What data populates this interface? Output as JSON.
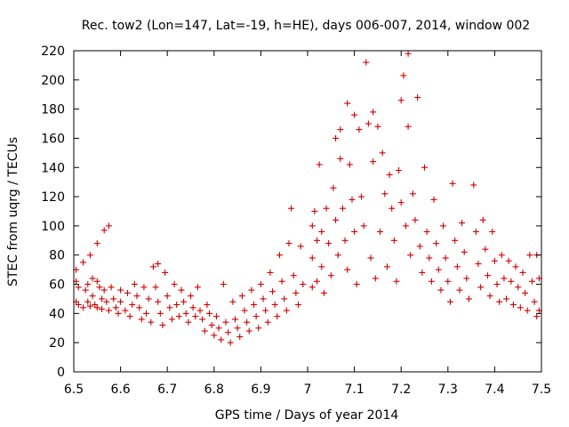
{
  "chart_data": {
    "type": "scatter",
    "title": "Rec. tow2 (Lon=147, Lat=-19, h=HE), days 006-007, 2014, window 002",
    "xlabel": "GPS time / Days of year 2014",
    "ylabel": "STEC from uqrg / TECUs",
    "xlim": [
      6.5,
      7.5
    ],
    "ylim": [
      0,
      220
    ],
    "xticks": [
      "6.5",
      "6.6",
      "6.7",
      "6.8",
      "6.9",
      "7",
      "7.1",
      "7.2",
      "7.3",
      "7.4",
      "7.5"
    ],
    "yticks": [
      "0",
      "20",
      "40",
      "60",
      "80",
      "100",
      "120",
      "140",
      "160",
      "180",
      "200",
      "220"
    ],
    "grid": false,
    "marker": "plus",
    "color": "#cc0000",
    "series": [
      {
        "name": "STEC",
        "points": [
          [
            6.505,
            70
          ],
          [
            6.505,
            62
          ],
          [
            6.505,
            48
          ],
          [
            6.51,
            58
          ],
          [
            6.51,
            46
          ],
          [
            6.52,
            75
          ],
          [
            6.52,
            44
          ],
          [
            6.525,
            56
          ],
          [
            6.53,
            60
          ],
          [
            6.53,
            48
          ],
          [
            6.535,
            80
          ],
          [
            6.535,
            45
          ],
          [
            6.54,
            64
          ],
          [
            6.54,
            52
          ],
          [
            6.545,
            46
          ],
          [
            6.55,
            88
          ],
          [
            6.55,
            62
          ],
          [
            6.55,
            44
          ],
          [
            6.555,
            58
          ],
          [
            6.56,
            50
          ],
          [
            6.56,
            43
          ],
          [
            6.565,
            97
          ],
          [
            6.565,
            56
          ],
          [
            6.57,
            48
          ],
          [
            6.575,
            100
          ],
          [
            6.575,
            42
          ],
          [
            6.58,
            58
          ],
          [
            6.585,
            50
          ],
          [
            6.59,
            44
          ],
          [
            6.595,
            40
          ],
          [
            6.6,
            56
          ],
          [
            6.6,
            48
          ],
          [
            6.61,
            42
          ],
          [
            6.615,
            54
          ],
          [
            6.62,
            38
          ],
          [
            6.625,
            46
          ],
          [
            6.63,
            60
          ],
          [
            6.635,
            52
          ],
          [
            6.64,
            44
          ],
          [
            6.645,
            36
          ],
          [
            6.65,
            58
          ],
          [
            6.655,
            40
          ],
          [
            6.66,
            50
          ],
          [
            6.665,
            34
          ],
          [
            6.67,
            72
          ],
          [
            6.675,
            58
          ],
          [
            6.68,
            74
          ],
          [
            6.68,
            48
          ],
          [
            6.685,
            40
          ],
          [
            6.69,
            32
          ],
          [
            6.695,
            68
          ],
          [
            6.7,
            52
          ],
          [
            6.705,
            44
          ],
          [
            6.71,
            36
          ],
          [
            6.715,
            60
          ],
          [
            6.72,
            46
          ],
          [
            6.725,
            38
          ],
          [
            6.73,
            56
          ],
          [
            6.735,
            48
          ],
          [
            6.74,
            40
          ],
          [
            6.745,
            34
          ],
          [
            6.75,
            52
          ],
          [
            6.755,
            44
          ],
          [
            6.76,
            38
          ],
          [
            6.765,
            58
          ],
          [
            6.77,
            42
          ],
          [
            6.775,
            36
          ],
          [
            6.78,
            28
          ],
          [
            6.785,
            46
          ],
          [
            6.79,
            40
          ],
          [
            6.795,
            32
          ],
          [
            6.8,
            25
          ],
          [
            6.805,
            38
          ],
          [
            6.81,
            30
          ],
          [
            6.815,
            22
          ],
          [
            6.82,
            60
          ],
          [
            6.825,
            34
          ],
          [
            6.83,
            27
          ],
          [
            6.835,
            20
          ],
          [
            6.84,
            48
          ],
          [
            6.845,
            36
          ],
          [
            6.85,
            30
          ],
          [
            6.855,
            24
          ],
          [
            6.86,
            52
          ],
          [
            6.865,
            42
          ],
          [
            6.87,
            34
          ],
          [
            6.875,
            28
          ],
          [
            6.88,
            56
          ],
          [
            6.885,
            46
          ],
          [
            6.89,
            38
          ],
          [
            6.895,
            30
          ],
          [
            6.9,
            60
          ],
          [
            6.905,
            50
          ],
          [
            6.91,
            42
          ],
          [
            6.915,
            34
          ],
          [
            6.92,
            68
          ],
          [
            6.925,
            55
          ],
          [
            6.93,
            46
          ],
          [
            6.935,
            38
          ],
          [
            6.94,
            80
          ],
          [
            6.945,
            62
          ],
          [
            6.95,
            50
          ],
          [
            6.955,
            42
          ],
          [
            6.96,
            88
          ],
          [
            6.965,
            112
          ],
          [
            6.97,
            66
          ],
          [
            6.975,
            54
          ],
          [
            6.98,
            46
          ],
          [
            6.985,
            86
          ],
          [
            6.99,
            60
          ],
          [
            7.01,
            100
          ],
          [
            7.01,
            78
          ],
          [
            7.01,
            58
          ],
          [
            7.015,
            110
          ],
          [
            7.02,
            90
          ],
          [
            7.02,
            62
          ],
          [
            7.025,
            142
          ],
          [
            7.03,
            96
          ],
          [
            7.03,
            72
          ],
          [
            7.035,
            54
          ],
          [
            7.04,
            112
          ],
          [
            7.045,
            88
          ],
          [
            7.05,
            66
          ],
          [
            7.055,
            126
          ],
          [
            7.06,
            104
          ],
          [
            7.06,
            160
          ],
          [
            7.065,
            80
          ],
          [
            7.07,
            166
          ],
          [
            7.07,
            146
          ],
          [
            7.075,
            112
          ],
          [
            7.08,
            90
          ],
          [
            7.085,
            184
          ],
          [
            7.085,
            70
          ],
          [
            7.09,
            142
          ],
          [
            7.095,
            118
          ],
          [
            7.1,
            176
          ],
          [
            7.1,
            96
          ],
          [
            7.105,
            60
          ],
          [
            7.11,
            166
          ],
          [
            7.115,
            120
          ],
          [
            7.12,
            100
          ],
          [
            7.125,
            212
          ],
          [
            7.13,
            170
          ],
          [
            7.135,
            78
          ],
          [
            7.14,
            178
          ],
          [
            7.14,
            144
          ],
          [
            7.145,
            64
          ],
          [
            7.15,
            168
          ],
          [
            7.155,
            96
          ],
          [
            7.16,
            150
          ],
          [
            7.165,
            122
          ],
          [
            7.17,
            72
          ],
          [
            7.175,
            135
          ],
          [
            7.18,
            112
          ],
          [
            7.185,
            90
          ],
          [
            7.19,
            62
          ],
          [
            7.195,
            138
          ],
          [
            7.2,
            186
          ],
          [
            7.2,
            116
          ],
          [
            7.205,
            203
          ],
          [
            7.21,
            100
          ],
          [
            7.215,
            168
          ],
          [
            7.215,
            218
          ],
          [
            7.22,
            80
          ],
          [
            7.225,
            122
          ],
          [
            7.23,
            104
          ],
          [
            7.235,
            188
          ],
          [
            7.24,
            86
          ],
          [
            7.245,
            68
          ],
          [
            7.25,
            140
          ],
          [
            7.255,
            96
          ],
          [
            7.26,
            78
          ],
          [
            7.265,
            62
          ],
          [
            7.27,
            118
          ],
          [
            7.275,
            88
          ],
          [
            7.28,
            70
          ],
          [
            7.285,
            56
          ],
          [
            7.29,
            100
          ],
          [
            7.295,
            78
          ],
          [
            7.3,
            62
          ],
          [
            7.305,
            48
          ],
          [
            7.31,
            129
          ],
          [
            7.315,
            90
          ],
          [
            7.32,
            72
          ],
          [
            7.325,
            56
          ],
          [
            7.33,
            102
          ],
          [
            7.335,
            82
          ],
          [
            7.34,
            64
          ],
          [
            7.345,
            50
          ],
          [
            7.355,
            128
          ],
          [
            7.36,
            96
          ],
          [
            7.365,
            74
          ],
          [
            7.37,
            58
          ],
          [
            7.375,
            104
          ],
          [
            7.38,
            84
          ],
          [
            7.385,
            66
          ],
          [
            7.39,
            52
          ],
          [
            7.395,
            96
          ],
          [
            7.4,
            76
          ],
          [
            7.405,
            60
          ],
          [
            7.41,
            48
          ],
          [
            7.415,
            80
          ],
          [
            7.42,
            64
          ],
          [
            7.425,
            50
          ],
          [
            7.43,
            76
          ],
          [
            7.435,
            62
          ],
          [
            7.44,
            46
          ],
          [
            7.445,
            72
          ],
          [
            7.45,
            58
          ],
          [
            7.455,
            44
          ],
          [
            7.46,
            68
          ],
          [
            7.465,
            54
          ],
          [
            7.47,
            42
          ],
          [
            7.475,
            80
          ],
          [
            7.48,
            62
          ],
          [
            7.485,
            48
          ],
          [
            7.49,
            80
          ],
          [
            7.49,
            38
          ],
          [
            7.495,
            64
          ],
          [
            7.495,
            42
          ]
        ]
      }
    ]
  }
}
